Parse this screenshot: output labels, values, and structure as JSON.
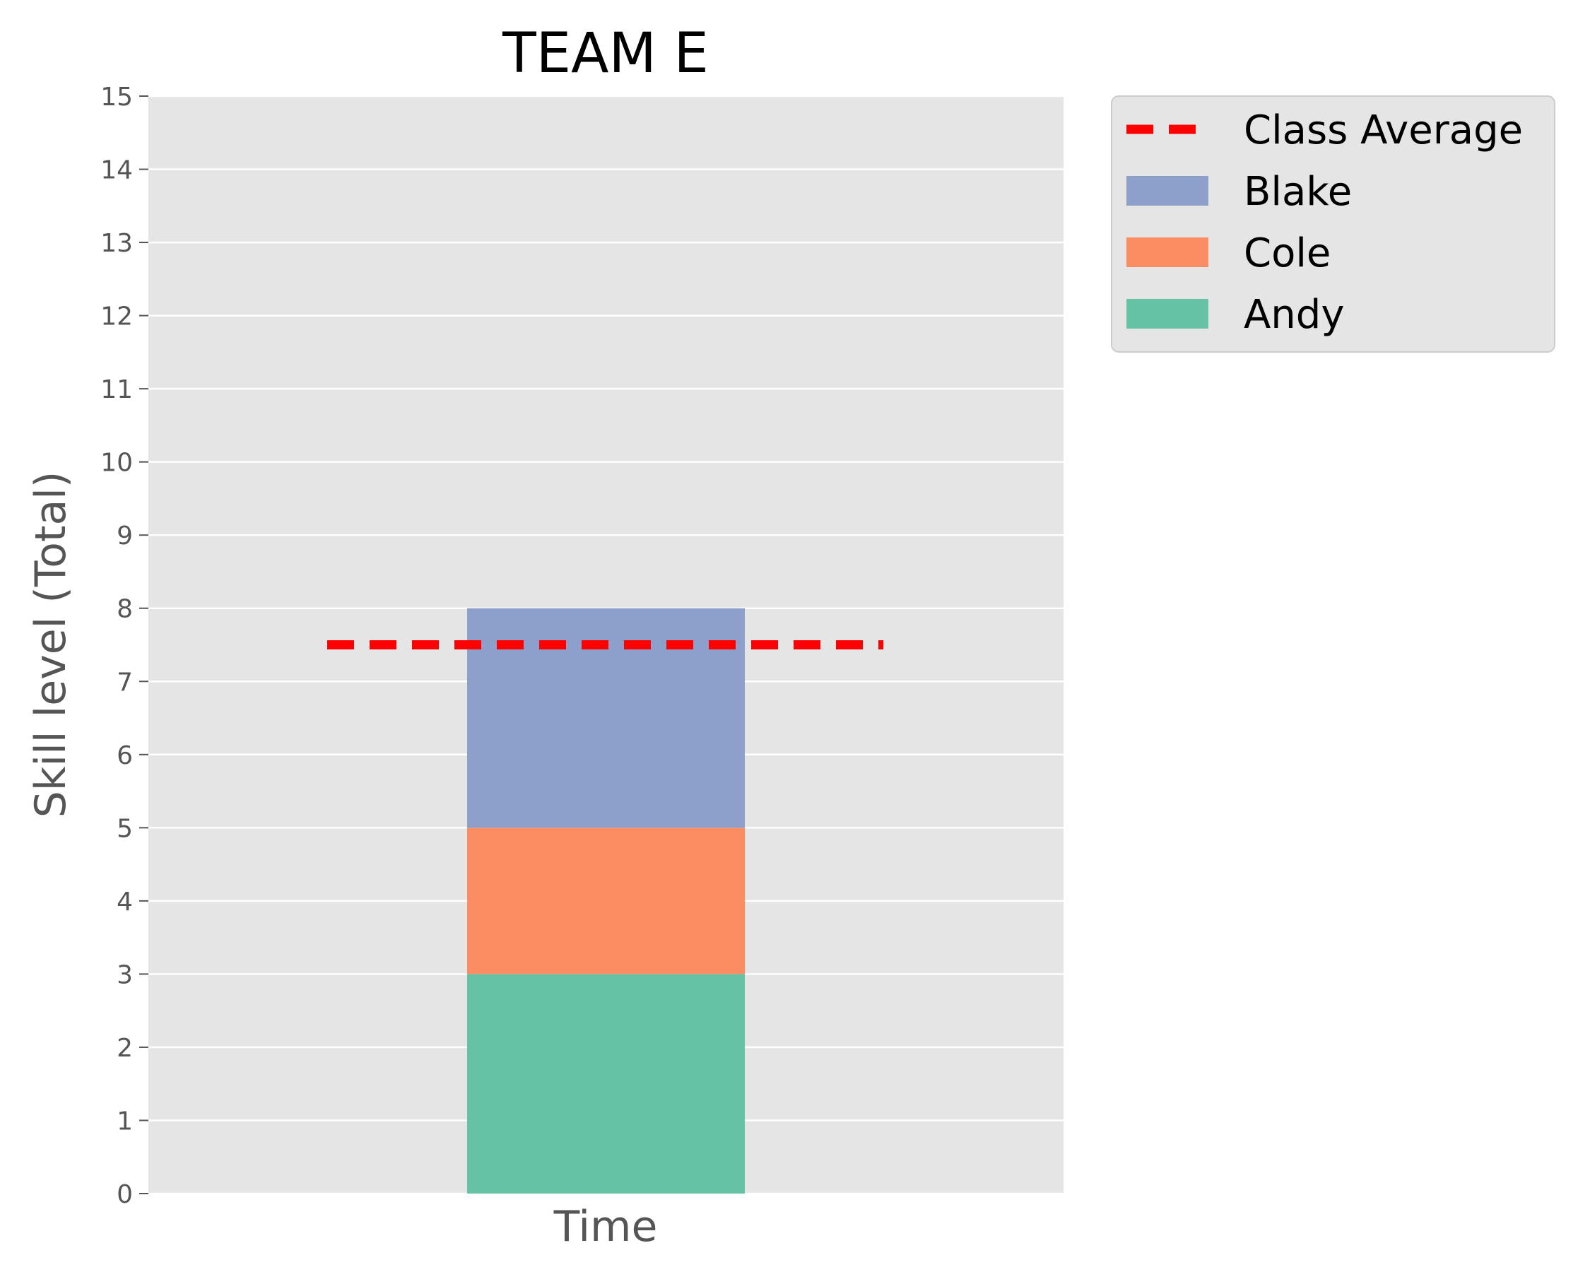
{
  "chart_data": {
    "type": "bar",
    "stacked": true,
    "title": "TEAM E",
    "xlabel": "Time",
    "ylabel": "Skill level (Total)",
    "ylim": [
      0,
      15
    ],
    "yticks": [
      0,
      1,
      2,
      3,
      4,
      5,
      6,
      7,
      8,
      9,
      10,
      11,
      12,
      13,
      14,
      15
    ],
    "categories": [
      ""
    ],
    "series": [
      {
        "name": "Andy",
        "values": [
          3
        ],
        "color": "#66c2a5"
      },
      {
        "name": "Cole",
        "values": [
          2
        ],
        "color": "#fc8d62"
      },
      {
        "name": "Blake",
        "values": [
          3
        ],
        "color": "#8da0cb"
      }
    ],
    "reference_line": {
      "name": "Class Average",
      "value": 7.5,
      "color": "#ff0000",
      "style": "dashed"
    },
    "legend": {
      "placement": "outside-top-right",
      "entries": [
        "Class Average",
        "Blake",
        "Cole",
        "Andy"
      ]
    },
    "grid": true,
    "background": "#e5e5e5"
  }
}
